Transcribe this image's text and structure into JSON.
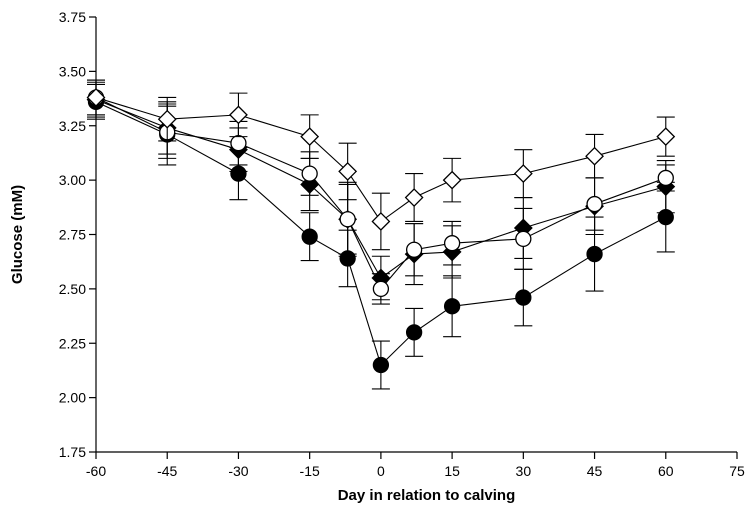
{
  "chart_data": {
    "type": "line",
    "title": "",
    "xlabel": "Day in relation to calving",
    "ylabel": "Glucose (mM)",
    "xlim": [
      -60,
      75
    ],
    "ylim": [
      1.75,
      3.75
    ],
    "x_ticks": [
      -60,
      -45,
      -30,
      -15,
      0,
      15,
      30,
      45,
      60,
      75
    ],
    "y_ticks": [
      "1.75",
      "2.00",
      "2.25",
      "2.50",
      "2.75",
      "3.00",
      "3.25",
      "3.50",
      "3.75"
    ],
    "grid": false,
    "series": [
      {
        "marker": "open-diamond",
        "x": [
          -60,
          -45,
          -30,
          -15,
          -7,
          0,
          7,
          15,
          30,
          45,
          60
        ],
        "y": [
          3.38,
          3.28,
          3.3,
          3.2,
          3.04,
          2.81,
          2.92,
          3.0,
          3.03,
          3.11,
          3.2
        ],
        "err": [
          0.08,
          0.1,
          0.1,
          0.1,
          0.13,
          0.13,
          0.11,
          0.1,
          0.11,
          0.1,
          0.09
        ]
      },
      {
        "marker": "filled-diamond",
        "x": [
          -60,
          -45,
          -30,
          -15,
          -7,
          0,
          7,
          15,
          30,
          45,
          60
        ],
        "y": [
          3.37,
          3.24,
          3.14,
          2.98,
          2.82,
          2.55,
          2.66,
          2.67,
          2.78,
          2.88,
          2.97
        ],
        "err": [
          0.08,
          0.12,
          0.1,
          0.12,
          0.17,
          0.1,
          0.14,
          0.12,
          0.14,
          0.13,
          0.12
        ]
      },
      {
        "marker": "open-circle",
        "x": [
          -60,
          -45,
          -30,
          -15,
          -7,
          0,
          7,
          15,
          30,
          45,
          60
        ],
        "y": [
          3.38,
          3.22,
          3.17,
          3.03,
          2.82,
          2.5,
          2.68,
          2.71,
          2.73,
          2.89,
          3.01
        ],
        "err": [
          0.08,
          0.12,
          0.1,
          0.1,
          0.16,
          0.07,
          0.12,
          0.1,
          0.14,
          0.12,
          0.06
        ]
      },
      {
        "marker": "filled-circle",
        "x": [
          -60,
          -45,
          -30,
          -15,
          -7,
          0,
          7,
          15,
          30,
          45,
          60
        ],
        "y": [
          3.36,
          3.21,
          3.03,
          2.74,
          2.64,
          2.15,
          2.3,
          2.42,
          2.46,
          2.66,
          2.83
        ],
        "err": [
          0.08,
          0.14,
          0.12,
          0.11,
          0.13,
          0.11,
          0.11,
          0.14,
          0.13,
          0.17,
          0.16
        ]
      }
    ]
  }
}
